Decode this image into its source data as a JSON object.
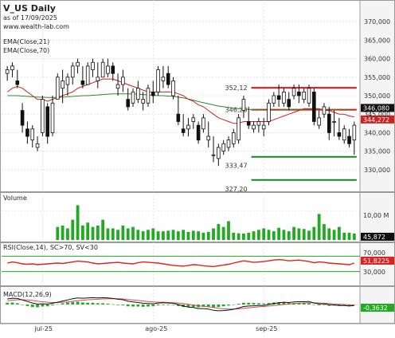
{
  "header": {
    "title": "V_US Daily",
    "asof": "as of 17/09/2025",
    "url": "www.wealth-lab.com",
    "ema21_label": "EMA(Close,21)",
    "ema70_label": "EMA(Close,70)"
  },
  "panes": {
    "volume_label": "Volume",
    "volume_tick": "10,00 M",
    "volume_badge": "45,872",
    "rsi_label": "RSI(Close,14), SC>70, SV<30",
    "rsi_ticks": [
      "70,000",
      "30,000"
    ],
    "rsi_badge": "51,8225",
    "macd_label": "MACD(12,26,9)",
    "macd_badge": "-0,3632"
  },
  "colors": {
    "up_candle": "#ffffff",
    "down_candle": "#111111",
    "ema21": "#cc2222",
    "ema70": "#2b8a2b",
    "resistance": "#ee1111",
    "support": "#11881a",
    "volume": "#22aa22",
    "rsi_line": "#dd2222",
    "rsi_bands": "#22aa22",
    "macd_line": "#111111",
    "signal_line": "#d05050",
    "hist": "#22aa22"
  },
  "chart_data": [
    {
      "type": "candlestick",
      "ylim": [
        325,
        375
      ],
      "y_ticks": [
        "370,000",
        "365,000",
        "360,000",
        "355,000",
        "350,000",
        "345,000",
        "340,000",
        "335,000",
        "330,000"
      ],
      "x_labels": [
        "jul-25",
        "ago-25",
        "sep-25"
      ],
      "ohlc": [
        [
          356,
          358,
          354,
          357
        ],
        [
          357,
          359,
          355,
          358
        ],
        [
          354,
          357,
          352,
          353
        ],
        [
          346,
          348,
          340,
          342
        ],
        [
          341,
          343,
          337,
          339
        ],
        [
          338,
          342,
          336,
          341
        ],
        [
          336,
          339,
          335,
          337
        ],
        [
          340,
          350,
          339,
          349
        ],
        [
          347,
          348,
          337,
          339
        ],
        [
          340,
          350,
          339,
          348
        ],
        [
          349,
          356,
          349,
          355
        ],
        [
          352,
          357,
          348,
          354
        ],
        [
          353,
          356,
          350,
          355
        ],
        [
          355,
          359,
          353,
          358
        ],
        [
          358,
          360,
          356,
          359
        ],
        [
          354,
          358,
          352,
          353
        ],
        [
          353,
          359,
          353,
          358
        ],
        [
          357,
          360,
          355,
          359
        ],
        [
          354,
          359,
          352,
          355
        ],
        [
          355,
          360,
          355,
          359
        ],
        [
          356,
          360,
          355,
          358
        ],
        [
          358,
          359,
          354,
          356
        ],
        [
          352,
          356,
          350,
          353
        ],
        [
          353,
          357,
          351,
          355
        ],
        [
          349,
          352,
          346,
          347
        ],
        [
          348,
          352,
          347,
          351
        ],
        [
          349,
          354,
          348,
          352
        ],
        [
          348,
          351,
          346,
          349
        ],
        [
          348,
          353,
          347,
          352
        ],
        [
          351,
          354,
          348,
          350
        ],
        [
          351,
          358,
          350,
          357
        ],
        [
          354,
          358,
          352,
          355
        ],
        [
          356,
          358,
          352,
          353
        ],
        [
          350,
          355,
          349,
          354
        ],
        [
          345,
          350,
          342,
          343
        ],
        [
          341,
          345,
          339,
          340
        ],
        [
          341,
          344,
          339,
          342
        ],
        [
          343,
          345,
          341,
          344
        ],
        [
          342,
          343,
          337,
          338
        ],
        [
          341,
          345,
          340,
          344
        ],
        [
          338,
          343,
          336,
          339
        ],
        [
          334,
          339,
          332,
          334
        ],
        [
          333,
          337,
          331,
          336
        ],
        [
          335,
          338,
          334,
          337
        ],
        [
          336,
          339,
          335,
          338
        ],
        [
          337,
          341,
          336,
          340
        ],
        [
          338,
          345,
          337,
          344
        ],
        [
          346,
          350,
          344,
          349
        ],
        [
          343,
          347,
          341,
          342
        ],
        [
          341,
          343,
          340,
          342
        ],
        [
          342,
          344,
          340,
          343
        ],
        [
          341,
          344,
          339,
          342
        ],
        [
          343,
          349,
          342,
          348
        ],
        [
          348,
          351,
          347,
          350
        ],
        [
          350,
          353,
          347,
          349
        ],
        [
          348,
          352,
          347,
          351
        ],
        [
          349,
          351,
          346,
          347
        ],
        [
          350,
          353,
          349,
          352
        ],
        [
          351,
          353,
          348,
          350
        ],
        [
          349,
          352,
          348,
          351
        ],
        [
          348,
          353,
          347,
          352
        ],
        [
          351,
          352,
          342,
          343
        ],
        [
          342,
          346,
          341,
          344
        ],
        [
          345,
          348,
          344,
          347
        ],
        [
          345,
          347,
          338,
          340
        ],
        [
          343,
          346,
          339,
          343
        ],
        [
          340,
          344,
          338,
          339
        ],
        [
          338,
          342,
          337,
          341
        ],
        [
          339,
          341,
          336,
          337
        ],
        [
          338,
          343,
          334,
          342
        ]
      ],
      "ema21": [
        351,
        352,
        352.5,
        352,
        351,
        350,
        349,
        349,
        348.5,
        349,
        349.5,
        350,
        350.5,
        351,
        352,
        352.5,
        353,
        353.5,
        354,
        354.5,
        354.5,
        354.5,
        354,
        353.5,
        353,
        352.5,
        352,
        351.5,
        351,
        351,
        351,
        351,
        351,
        351,
        350.5,
        350,
        349,
        348.5,
        347.5,
        347,
        346,
        345,
        344,
        343.5,
        343,
        342.5,
        342.5,
        343,
        343,
        343,
        343,
        343,
        343,
        343.5,
        344,
        344.5,
        345,
        345.5,
        346,
        346.5,
        346.5,
        346.5,
        346.5,
        346,
        346,
        345.5,
        345,
        345,
        344.5,
        344.272
      ],
      "ema70": [
        350,
        350,
        350,
        349.9,
        349.8,
        349.7,
        349.6,
        349.6,
        349.5,
        349.5,
        349.5,
        349.6,
        349.7,
        349.8,
        349.9,
        350,
        350,
        350.1,
        350.2,
        350.3,
        350.4,
        350.5,
        350.5,
        350.5,
        350.5,
        350.5,
        350.4,
        350.3,
        350.2,
        350.1,
        350,
        350,
        349.9,
        349.8,
        349.6,
        349.4,
        349.1,
        348.8,
        348.4,
        348.1,
        347.8,
        347.5,
        347.2,
        347,
        346.8,
        346.6,
        346.5,
        346.4,
        346.3,
        346.2,
        346.2,
        346.1,
        346.1,
        346.1,
        346.1,
        346.2,
        346.2,
        346.3,
        346.3,
        346.3,
        346.3,
        346.3,
        346.3,
        346.3,
        346.2,
        346.2,
        346.1,
        346.1,
        346.1,
        346.08
      ],
      "levels": {
        "resistance": [
          {
            "value": 352.12,
            "label": "352,12",
            "from": 49,
            "to": 69
          },
          {
            "value": 346.2,
            "label": "346,20",
            "from": 49,
            "to": 69
          }
        ],
        "support": [
          {
            "value": 333.47,
            "label": "333,47",
            "from": 49,
            "to": 69
          },
          {
            "value": 327.2,
            "label": "327,20",
            "from": 49,
            "to": 69
          }
        ]
      },
      "last_values": {
        "ema70": "346,080",
        "ema21": "344,272"
      }
    },
    {
      "type": "bar",
      "title": "Volume",
      "ylim": [
        0,
        16
      ],
      "values": [
        4.5,
        5,
        4,
        7,
        12,
        5,
        6,
        4.5,
        5,
        7,
        4,
        4,
        3.5,
        5,
        4,
        4.5,
        3.5,
        3,
        3.5,
        4,
        3,
        3,
        3.2,
        3.5,
        3,
        3.5,
        2.8,
        3.2,
        3,
        2.5,
        2.8,
        4,
        5.5,
        4.5,
        6.5,
        2.5,
        2.3,
        2.2,
        2.5,
        3,
        3.5,
        4,
        3.5,
        3,
        4.2,
        3.5,
        3,
        4.5,
        4,
        3.8,
        3.2,
        4.5,
        9,
        5.5,
        4,
        3.5,
        4.5,
        2.5,
        2.5,
        2.2
      ]
    },
    {
      "type": "line",
      "title": "RSI(Close,14), SC>70, SV<30",
      "ylim": [
        0,
        100
      ],
      "bands": [
        70,
        30
      ],
      "values": [
        52,
        55,
        53,
        50,
        49,
        50,
        48,
        49,
        50,
        51,
        52,
        51,
        53,
        55,
        57,
        56,
        55,
        52,
        50,
        51,
        52,
        53,
        54,
        52,
        51,
        50,
        53,
        55,
        54,
        53,
        52,
        50,
        48,
        46,
        45,
        44,
        46,
        48,
        47,
        45,
        44,
        43,
        45,
        47,
        49,
        52,
        55,
        58,
        56,
        54,
        55,
        56,
        58,
        60,
        61,
        60,
        58,
        59,
        60,
        58,
        56,
        53,
        55,
        54,
        52,
        51,
        50,
        49,
        48,
        51.8225
      ]
    },
    {
      "type": "line",
      "title": "MACD(12,26,9)",
      "ylim": [
        -6,
        6
      ],
      "series": [
        {
          "values": [
            2.2,
            2.5,
            2.4,
            1.8,
            1.2,
            0.6,
            0.2,
            0.3,
            0.2,
            0.5,
            0.9,
            1.4,
            1.8,
            2.3,
            2.6,
            2.5,
            2.6,
            2.7,
            2.6,
            2.7,
            2.6,
            2.4,
            2.1,
            1.9,
            1.3,
            1,
            0.8,
            0.5,
            0.4,
            0.3,
            0.6,
            0.7,
            0.6,
            0.5,
            0,
            -0.6,
            -1,
            -1.2,
            -1.6,
            -1.6,
            -1.8,
            -2.3,
            -2.5,
            -2.4,
            -2.2,
            -1.9,
            -1.4,
            -0.8,
            -0.6,
            -0.5,
            -0.4,
            -0.4,
            0,
            0.4,
            0.7,
            0.9,
            0.8,
            1,
            1.1,
            1.1,
            1.2,
            0.6,
            0.3,
            0.3,
            -0.1,
            -0.2,
            -0.4,
            -0.4,
            -0.6,
            -0.3632
          ]
        },
        {
          "values": [
            1.5,
            1.7,
            1.9,
            1.9,
            1.8,
            1.6,
            1.3,
            1.1,
            0.9,
            0.8,
            0.8,
            0.9,
            1,
            1.3,
            1.5,
            1.7,
            1.9,
            2,
            2.1,
            2.2,
            2.3,
            2.3,
            2.3,
            2.2,
            2,
            1.8,
            1.6,
            1.4,
            1.2,
            1,
            0.9,
            0.9,
            0.8,
            0.7,
            0.6,
            0.4,
            0.1,
            -0.2,
            -0.5,
            -0.7,
            -0.9,
            -1.2,
            -1.5,
            -1.7,
            -1.8,
            -1.8,
            -1.7,
            -1.5,
            -1.3,
            -1.1,
            -0.9,
            -0.8,
            -0.6,
            -0.4,
            -0.2,
            0,
            0.2,
            0.4,
            0.5,
            0.6,
            0.7,
            0.7,
            0.6,
            0.5,
            0.4,
            0.2,
            0.1,
            0,
            -0.1,
            -0.2
          ]
        }
      ]
    }
  ]
}
